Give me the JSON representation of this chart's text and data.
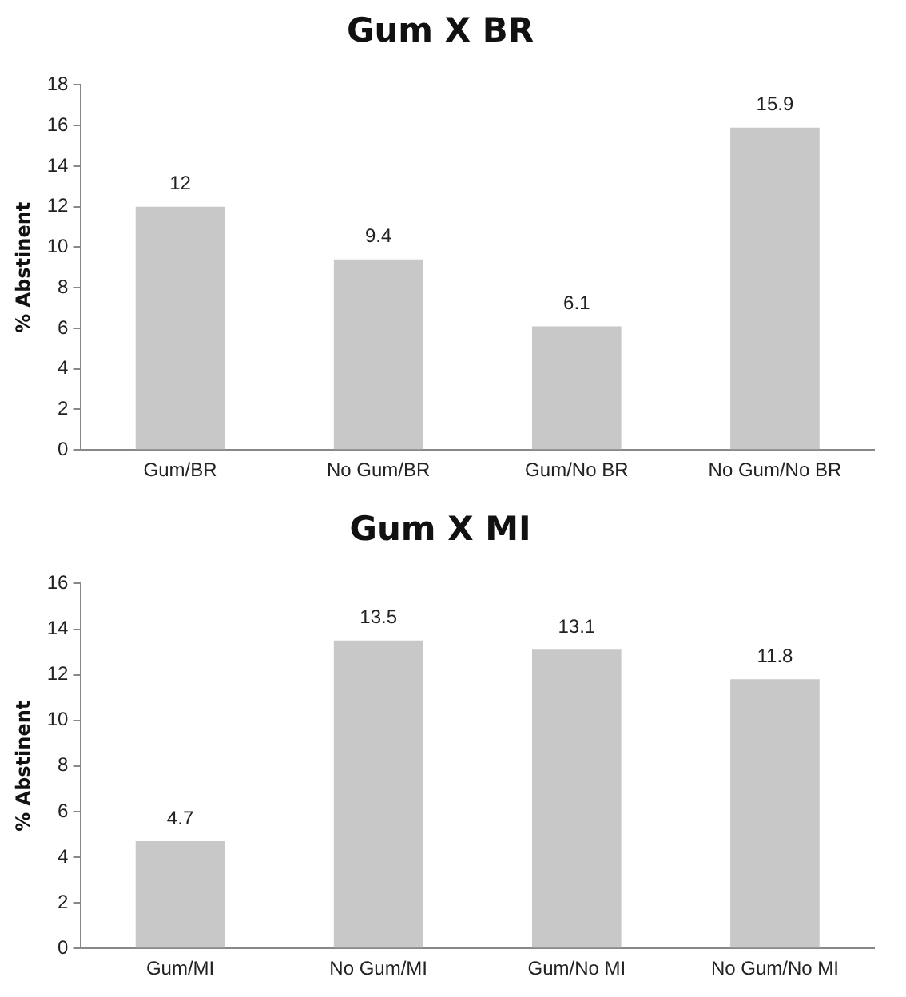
{
  "chart_data": [
    {
      "type": "bar",
      "title": "Gum X BR",
      "ylabel": "% Abstinent",
      "categories": [
        "Gum/BR",
        "No Gum/BR",
        "Gum/No BR",
        "No Gum/No BR"
      ],
      "values": [
        12,
        9.4,
        6.1,
        15.9
      ],
      "color": "#c8c8c8",
      "ylim": [
        0,
        18
      ],
      "yticks": [
        0,
        2,
        4,
        6,
        8,
        10,
        12,
        14,
        16,
        18
      ],
      "grid": false,
      "data_labels": true
    },
    {
      "type": "bar",
      "title": "Gum X MI",
      "ylabel": "% Abstinent",
      "categories": [
        "Gum/MI",
        "No Gum/MI",
        "Gum/No MI",
        "No Gum/No MI"
      ],
      "values": [
        4.7,
        13.5,
        13.1,
        11.8
      ],
      "color": "#c8c8c8",
      "ylim": [
        0,
        16
      ],
      "yticks": [
        0,
        2,
        4,
        6,
        8,
        10,
        12,
        14,
        16
      ],
      "grid": false,
      "data_labels": true
    }
  ]
}
